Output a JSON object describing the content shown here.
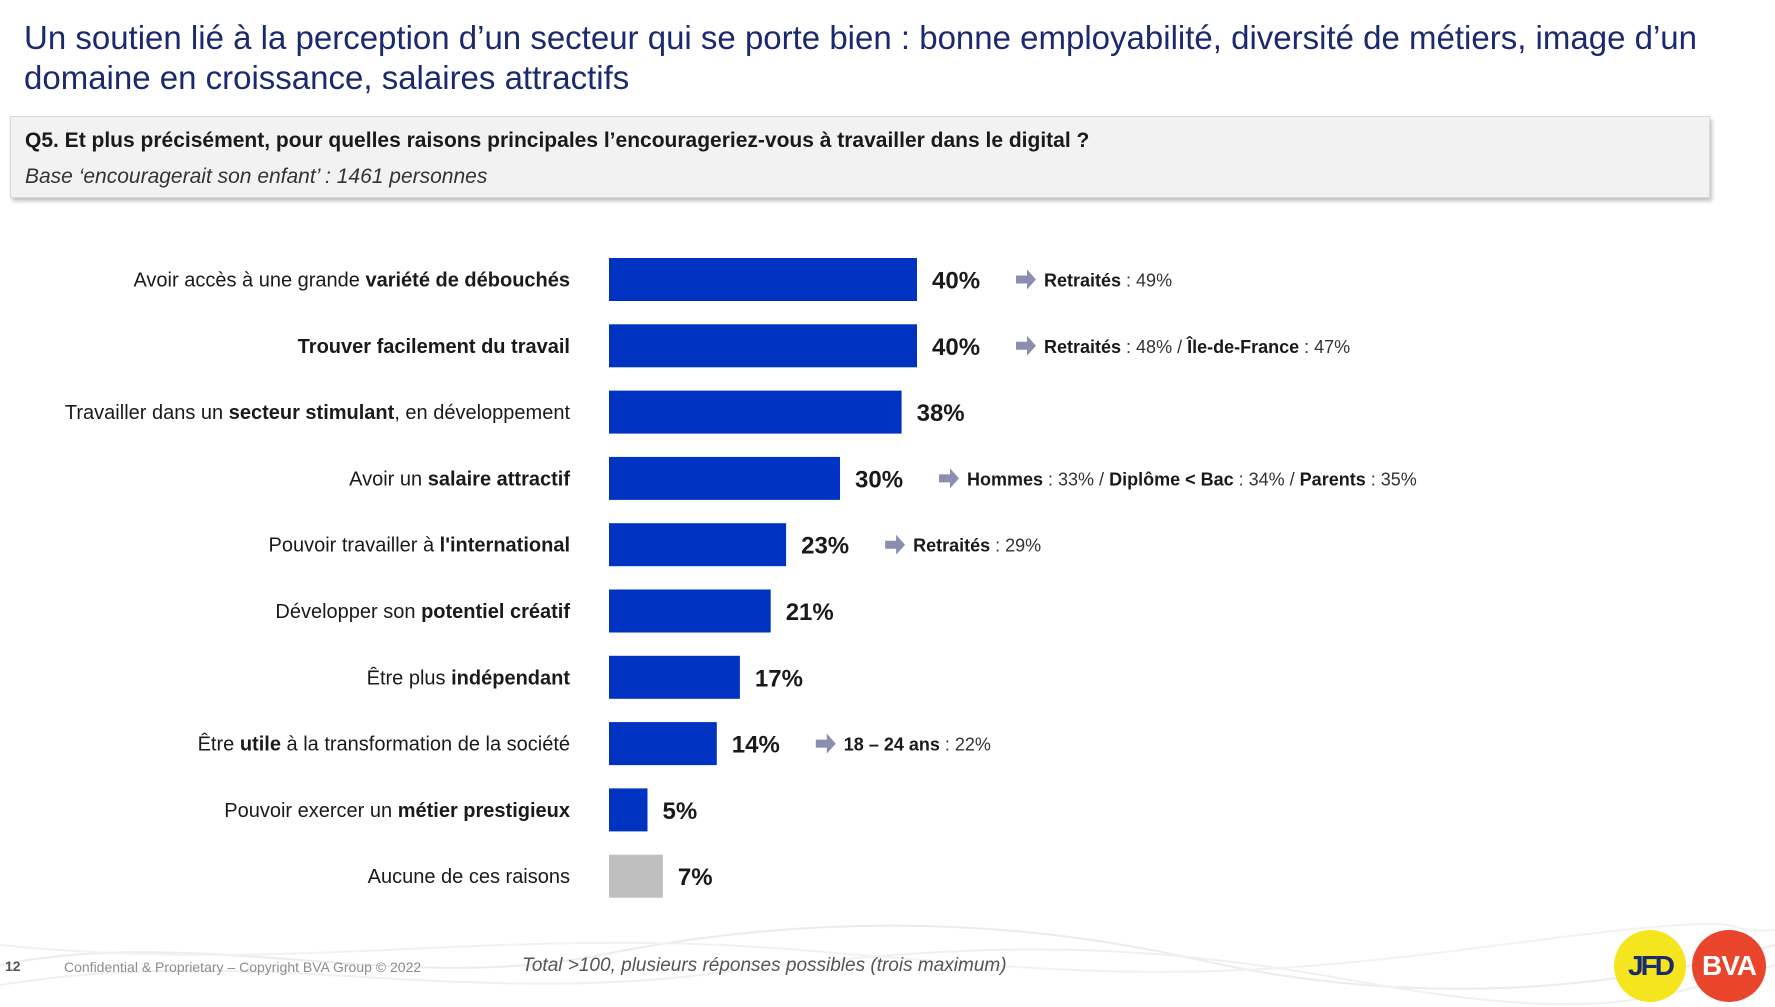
{
  "slide": {
    "title": "Un soutien lié à la perception d’un secteur qui se porte bien : bonne employabilité, diversité de métiers, image d’un domaine en croissance, salaires attractifs",
    "question": "Q5. Et plus précisément, pour quelles raisons principales l’encourageriez-vous à travailler dans le digital ?",
    "base": "Base ‘encouragerait son enfant’ : 1461 personnes",
    "page_number": "12",
    "confidential": "Confidential & Proprietary – Copyright BVA Group ©  2022",
    "footnote": "Total >100, plusieurs réponses possibles (trois maximum)",
    "logos": {
      "left": "JFD",
      "right": "BVA"
    }
  },
  "colors": {
    "bar": "#0033c1",
    "bar_none": "#bfbfbf",
    "arrow": "#8a8fb0",
    "title": "#1b2a6e"
  },
  "chart_data": {
    "type": "bar",
    "orientation": "horizontal",
    "categories": [
      [
        {
          "t": "Avoir accès à une grande "
        },
        {
          "t": "variété de débouchés",
          "b": true
        }
      ],
      [
        {
          "t": "Trouver facilement du travail",
          "b": true
        }
      ],
      [
        {
          "t": "Travailler dans un "
        },
        {
          "t": "secteur stimulant",
          "b": true
        },
        {
          "t": ", en développement"
        }
      ],
      [
        {
          "t": "Avoir un "
        },
        {
          "t": "salaire attractif",
          "b": true
        }
      ],
      [
        {
          "t": "Pouvoir travailler à "
        },
        {
          "t": "l'international",
          "b": true
        }
      ],
      [
        {
          "t": "Développer son "
        },
        {
          "t": "potentiel créatif",
          "b": true
        }
      ],
      [
        {
          "t": "Être plus "
        },
        {
          "t": "indépendant",
          "b": true
        }
      ],
      [
        {
          "t": "Être "
        },
        {
          "t": "utile",
          "b": true
        },
        {
          "t": " à la transformation de la société"
        }
      ],
      [
        {
          "t": "Pouvoir exercer un "
        },
        {
          "t": "métier prestigieux",
          "b": true
        }
      ],
      [
        {
          "t": "Aucune de ces raisons"
        }
      ]
    ],
    "values": [
      40,
      40,
      38,
      30,
      23,
      21,
      17,
      14,
      5,
      7
    ],
    "value_labels": [
      "40%",
      "40%",
      "38%",
      "30%",
      "23%",
      "21%",
      "17%",
      "14%",
      "5%",
      "7%"
    ],
    "highlight_gray": [
      false,
      false,
      false,
      false,
      false,
      false,
      false,
      false,
      false,
      true
    ],
    "notes": [
      [
        {
          "t": "Retraités",
          "b": true
        },
        {
          "t": "  : 49%"
        }
      ],
      [
        {
          "t": "Retraités",
          "b": true
        },
        {
          "t": "  : 48% / "
        },
        {
          "t": "Île-de-France",
          "b": true
        },
        {
          "t": " : 47%"
        }
      ],
      [],
      [
        {
          "t": "Hommes",
          "b": true
        },
        {
          "t": " : 33% / "
        },
        {
          "t": "Diplôme < Bac",
          "b": true
        },
        {
          "t": " : 34% / "
        },
        {
          "t": "Parents",
          "b": true
        },
        {
          "t": " : 35%"
        }
      ],
      [
        {
          "t": "Retraités",
          "b": true
        },
        {
          "t": "  : 29%"
        }
      ],
      [],
      [],
      [
        {
          "t": "18 – 24 ans",
          "b": true
        },
        {
          "t": " : 22%"
        }
      ],
      [],
      []
    ],
    "xlim": [
      0,
      40
    ],
    "grid": false,
    "legend": "none"
  }
}
